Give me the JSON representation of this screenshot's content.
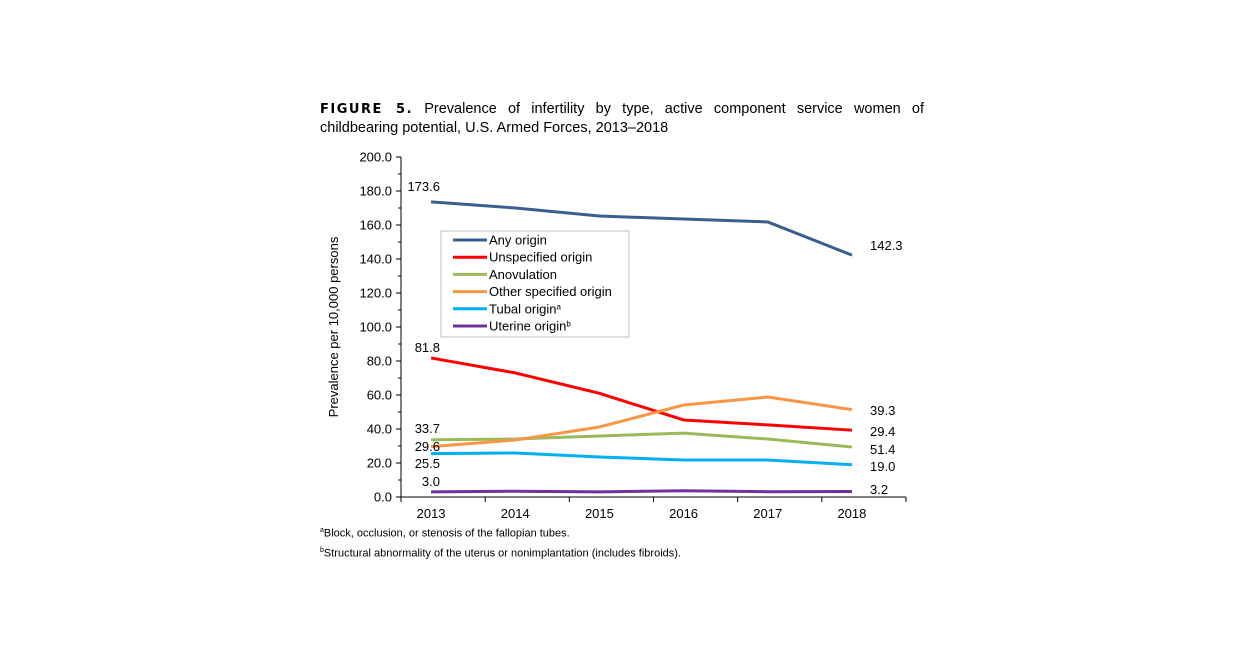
{
  "chart_data": {
    "type": "line",
    "title_prefix": "FIGURE 5.",
    "title": "Prevalence of infertility by type, active component service women of childbearing potential, U.S. Armed Forces, 2013–2018",
    "xlabel": "",
    "ylabel": "Prevalence per 10,000 persons",
    "ylim": [
      0,
      200
    ],
    "yticks": [
      "0.0",
      "20.0",
      "40.0",
      "60.0",
      "80.0",
      "100.0",
      "120.0",
      "140.0",
      "160.0",
      "180.0",
      "200.0"
    ],
    "categories": [
      "2013",
      "2014",
      "2015",
      "2016",
      "2017",
      "2018"
    ],
    "grid": false,
    "legend_placement": "upper-left inside",
    "series": [
      {
        "name": "Any origin",
        "sup": "",
        "color": "#3a5f8f",
        "values": [
          173.6,
          170.0,
          165.3,
          163.5,
          161.8,
          142.3
        ],
        "start_label": "173.6",
        "end_label": "142.3"
      },
      {
        "name": "Unspecified origin",
        "sup": "",
        "color": "#ff0000",
        "values": [
          81.8,
          73.0,
          61.0,
          45.3,
          42.4,
          39.3
        ],
        "start_label": "81.8",
        "end_label": "39.3"
      },
      {
        "name": "Anovulation",
        "sup": "",
        "color": "#9bbb59",
        "values": [
          33.7,
          34.1,
          35.9,
          37.6,
          34.1,
          29.4
        ],
        "start_label": "33.7",
        "end_label": "29.4"
      },
      {
        "name": "Other specified origin",
        "sup": "",
        "color": "#f79646",
        "values": [
          29.6,
          33.5,
          41.2,
          54.1,
          58.8,
          51.4
        ],
        "start_label": "29.6",
        "end_label": "51.4"
      },
      {
        "name": "Tubal origin",
        "sup": "a",
        "color": "#00b0f0",
        "values": [
          25.5,
          25.9,
          23.5,
          21.8,
          21.8,
          19.0
        ],
        "start_label": "25.5",
        "end_label": "19.0"
      },
      {
        "name": "Uterine origin",
        "sup": "b",
        "color": "#7030a0",
        "values": [
          3.0,
          3.4,
          3.0,
          3.7,
          3.1,
          3.2
        ],
        "start_label": "3.0",
        "end_label": "3.2"
      }
    ],
    "footnotes": [
      {
        "mark": "a",
        "text": "Block, occlusion, or stenosis of the fallopian tubes."
      },
      {
        "mark": "b",
        "text": "Structural abnormality of the uterus or nonimplantation (includes fibroids)."
      }
    ]
  }
}
